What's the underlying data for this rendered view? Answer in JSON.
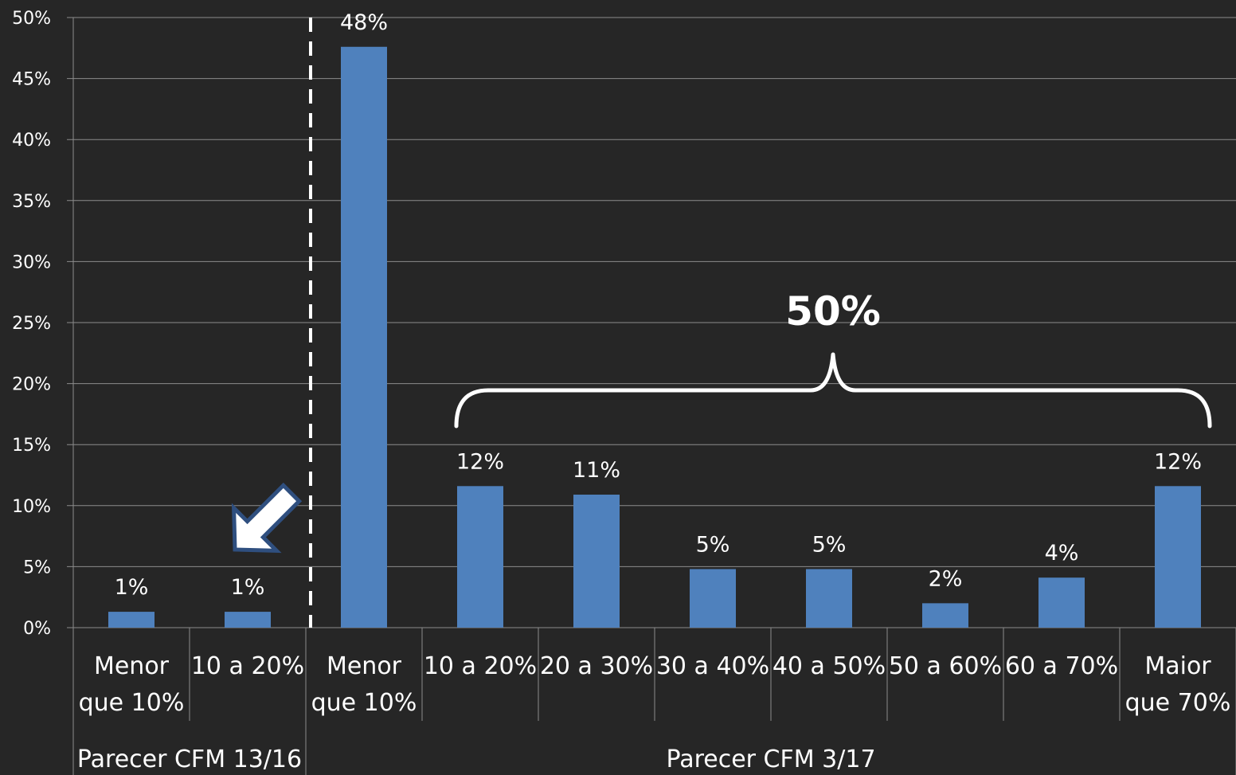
{
  "chart_data": {
    "type": "bar",
    "categories": [
      "Menor que 10%",
      "10 a 20%",
      "Menor que 10%",
      "10 a 20%",
      "20 a 30%",
      "30 a 40%",
      "40 a 50%",
      "50 a 60%",
      "60 a 70%",
      "Maior que 70%"
    ],
    "category_lines": [
      [
        "Menor",
        "que 10%"
      ],
      [
        "10 a 20%"
      ],
      [
        "Menor",
        "que 10%"
      ],
      [
        "10 a 20%"
      ],
      [
        "20 a 30%"
      ],
      [
        "30 a 40%"
      ],
      [
        "40 a 50%"
      ],
      [
        "50 a 60%"
      ],
      [
        "60 a 70%"
      ],
      [
        "Maior",
        "que 70%"
      ]
    ],
    "values": [
      1.3,
      1.3,
      47.6,
      11.6,
      10.9,
      4.8,
      4.8,
      2.0,
      4.1,
      11.6
    ],
    "data_labels": [
      "1%",
      "1%",
      "48%",
      "12%",
      "11%",
      "5%",
      "5%",
      "2%",
      "4%",
      "12%"
    ],
    "groups": [
      {
        "label": "Parecer CFM 13/16",
        "start": 0,
        "end": 1
      },
      {
        "label": "Parecer CFM 3/17",
        "start": 2,
        "end": 9
      }
    ],
    "yticks": [
      "0%",
      "5%",
      "10%",
      "15%",
      "20%",
      "25%",
      "30%",
      "35%",
      "40%",
      "45%",
      "50%"
    ],
    "ylim": [
      0,
      50
    ],
    "ystep": 5,
    "grid": true,
    "bar_color": "#4f81bd",
    "divider_after_index": 1,
    "brace": {
      "label": "50%",
      "start": 3,
      "end": 9
    },
    "arrow_target_index": 1
  }
}
